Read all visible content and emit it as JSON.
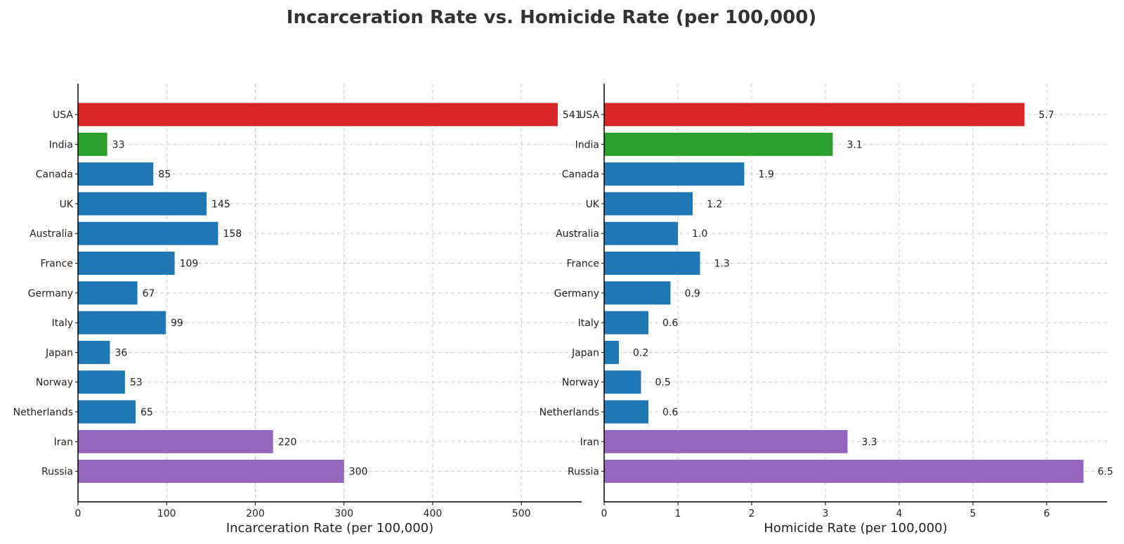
{
  "title": "Incarceration Rate vs. Homicide Rate (per 100,000)",
  "categories": [
    "USA",
    "India",
    "Canada",
    "UK",
    "Australia",
    "France",
    "Germany",
    "Italy",
    "Japan",
    "Norway",
    "Netherlands",
    "Iran",
    "Russia"
  ],
  "colors": {
    "highlight": "#d62728",
    "india": "#2ca02c",
    "default": "#1f77b4",
    "iran_russia": "#9467bd"
  },
  "chart_data": [
    {
      "type": "bar",
      "orientation": "horizontal",
      "xlabel": "Incarceration Rate (per 100,000)",
      "xlim": [
        0,
        568
      ],
      "xticks": [
        0,
        100,
        200,
        300,
        400,
        500
      ],
      "categories": [
        "USA",
        "India",
        "Canada",
        "UK",
        "Australia",
        "France",
        "Germany",
        "Italy",
        "Japan",
        "Norway",
        "Netherlands",
        "Iran",
        "Russia"
      ],
      "values": [
        541,
        33,
        85,
        145,
        158,
        109,
        67,
        99,
        36,
        53,
        65,
        220,
        300
      ],
      "value_labels": [
        "541",
        "33",
        "85",
        "145",
        "158",
        "109",
        "67",
        "99",
        "36",
        "53",
        "65",
        "220",
        "300"
      ],
      "bar_colors": [
        "#d62728",
        "#2ca02c",
        "#1f77b4",
        "#1f77b4",
        "#1f77b4",
        "#1f77b4",
        "#1f77b4",
        "#1f77b4",
        "#1f77b4",
        "#1f77b4",
        "#1f77b4",
        "#9467bd",
        "#9467bd"
      ],
      "grid": true
    },
    {
      "type": "bar",
      "orientation": "horizontal",
      "xlabel": "Homicide Rate (per 100,000)",
      "xlim": [
        0,
        6.82
      ],
      "xticks": [
        0,
        1,
        2,
        3,
        4,
        5,
        6
      ],
      "categories": [
        "USA",
        "India",
        "Canada",
        "UK",
        "Australia",
        "France",
        "Germany",
        "Italy",
        "Japan",
        "Norway",
        "Netherlands",
        "Iran",
        "Russia"
      ],
      "values": [
        5.7,
        3.1,
        1.9,
        1.2,
        1.0,
        1.3,
        0.9,
        0.6,
        0.2,
        0.5,
        0.6,
        3.3,
        6.5
      ],
      "value_labels": [
        "5.7",
        "3.1",
        "1.9",
        "1.2",
        "1.0",
        "1.3",
        "0.9",
        "0.6",
        "0.2",
        "0.5",
        "0.6",
        "3.3",
        "6.5"
      ],
      "bar_colors": [
        "#d62728",
        "#2ca02c",
        "#1f77b4",
        "#1f77b4",
        "#1f77b4",
        "#1f77b4",
        "#1f77b4",
        "#1f77b4",
        "#1f77b4",
        "#1f77b4",
        "#1f77b4",
        "#9467bd",
        "#9467bd"
      ],
      "grid": true
    }
  ]
}
